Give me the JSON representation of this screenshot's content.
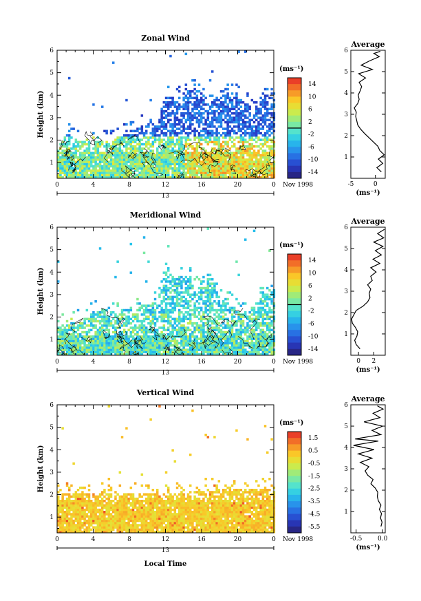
{
  "figure": {
    "month_label": "Nov 1998",
    "day_label": "13",
    "xlabel_bottom": "Local Time"
  },
  "chart_data": [
    {
      "type": "heatmap",
      "title": "Zonal Wind",
      "ylabel": "Height (km)",
      "xlabel": "",
      "x_ticks": [
        "0",
        "4",
        "8",
        "12",
        "16",
        "20",
        "0"
      ],
      "xlim": [
        0,
        24
      ],
      "ylim": [
        0.3,
        6
      ],
      "y_ticks": [
        1,
        2,
        3,
        4,
        5,
        6
      ],
      "colorbar": {
        "unit": "(ms⁻¹)",
        "ticks": [
          "14",
          "10",
          "6",
          "2",
          "-2",
          "-6",
          "-10",
          "-14"
        ],
        "range": [
          -15,
          15
        ],
        "mark": 0
      },
      "profile": {
        "title": "Average",
        "xlabel": "(ms⁻¹)",
        "x_ticks": [
          "-5",
          "0"
        ],
        "xlim": [
          -5,
          2
        ],
        "ylim": [
          0,
          6
        ],
        "points": [
          [
            1.2,
            0.3
          ],
          [
            0.3,
            0.5
          ],
          [
            1.5,
            0.7
          ],
          [
            0.6,
            0.9
          ],
          [
            1.8,
            1.1
          ],
          [
            0.9,
            1.3
          ],
          [
            0.5,
            1.5
          ],
          [
            -0.4,
            1.7
          ],
          [
            -1.3,
            1.9
          ],
          [
            -2.2,
            2.1
          ],
          [
            -3.0,
            2.3
          ],
          [
            -3.6,
            2.5
          ],
          [
            -3.8,
            2.7
          ],
          [
            -4.0,
            2.9
          ],
          [
            -3.9,
            3.1
          ],
          [
            -4.3,
            3.3
          ],
          [
            -3.6,
            3.5
          ],
          [
            -3.3,
            3.7
          ],
          [
            -3.5,
            3.9
          ],
          [
            -3.1,
            4.1
          ],
          [
            -2.8,
            4.3
          ],
          [
            -3.3,
            4.5
          ],
          [
            -2.0,
            4.7
          ],
          [
            -3.4,
            4.9
          ],
          [
            -0.6,
            5.1
          ],
          [
            -2.9,
            5.3
          ],
          [
            -1.2,
            5.5
          ],
          [
            0.8,
            5.7
          ],
          [
            -0.3,
            5.85
          ],
          [
            1.0,
            5.95
          ]
        ]
      },
      "seed": 7,
      "field_min": -12,
      "field_max": 14,
      "base_top": 1.5,
      "tops": [
        [
          0,
          1.7
        ],
        [
          1,
          2.3
        ],
        [
          2,
          2.0
        ],
        [
          3,
          1.9
        ],
        [
          4,
          1.9
        ],
        [
          5,
          2.0
        ],
        [
          6,
          2.0
        ],
        [
          7,
          2.2
        ],
        [
          8,
          2.3
        ],
        [
          9,
          2.6
        ],
        [
          10,
          2.4
        ],
        [
          11,
          2.7
        ],
        [
          12,
          4.0
        ],
        [
          13,
          3.8
        ],
        [
          14,
          4.0
        ],
        [
          15,
          4.3
        ],
        [
          16,
          4.1
        ],
        [
          17,
          3.7
        ],
        [
          18,
          4.0
        ],
        [
          19,
          4.2
        ],
        [
          20,
          3.9
        ],
        [
          21,
          3.6
        ],
        [
          22,
          3.4
        ],
        [
          23,
          4.1
        ],
        [
          24,
          3.8
        ]
      ]
    },
    {
      "type": "heatmap",
      "title": "Meridional Wind",
      "ylabel": "Height (km)",
      "xlabel": "",
      "x_ticks": [
        "0",
        "4",
        "8",
        "12",
        "16",
        "20",
        "0"
      ],
      "xlim": [
        0,
        24
      ],
      "ylim": [
        0.3,
        6
      ],
      "y_ticks": [
        1,
        2,
        3,
        4,
        5,
        6
      ],
      "colorbar": {
        "unit": "(ms⁻¹)",
        "ticks": [
          "14",
          "10",
          "6",
          "2",
          "-2",
          "-6",
          "-10",
          "-14"
        ],
        "range": [
          -15,
          15
        ],
        "mark": 0
      },
      "profile": {
        "title": "Average",
        "xlabel": "(ms⁻¹)",
        "x_ticks": [
          "0",
          "2"
        ],
        "xlim": [
          -1,
          3.5
        ],
        "ylim": [
          0,
          6
        ],
        "points": [
          [
            0.2,
            0.3
          ],
          [
            -0.3,
            0.5
          ],
          [
            -0.5,
            0.7
          ],
          [
            -0.2,
            0.9
          ],
          [
            -0.1,
            1.1
          ],
          [
            -0.4,
            1.3
          ],
          [
            -0.8,
            1.5
          ],
          [
            -0.9,
            1.7
          ],
          [
            -0.6,
            1.9
          ],
          [
            -0.3,
            2.1
          ],
          [
            0.6,
            2.3
          ],
          [
            1.2,
            2.5
          ],
          [
            1.5,
            2.7
          ],
          [
            1.4,
            2.9
          ],
          [
            1.6,
            3.1
          ],
          [
            1.2,
            3.3
          ],
          [
            1.8,
            3.5
          ],
          [
            1.6,
            3.7
          ],
          [
            2.3,
            3.9
          ],
          [
            1.6,
            4.1
          ],
          [
            2.8,
            4.3
          ],
          [
            1.9,
            4.5
          ],
          [
            3.0,
            4.7
          ],
          [
            2.2,
            4.9
          ],
          [
            3.2,
            5.1
          ],
          [
            2.0,
            5.3
          ],
          [
            3.3,
            5.5
          ],
          [
            2.5,
            5.7
          ],
          [
            3.4,
            5.9
          ]
        ]
      },
      "seed": 23,
      "field_min": -12,
      "field_max": 6,
      "base_top": 1.2,
      "tops": [
        [
          0,
          1.6
        ],
        [
          1,
          1.7
        ],
        [
          2,
          1.8
        ],
        [
          3,
          1.9
        ],
        [
          4,
          2.3
        ],
        [
          5,
          2.4
        ],
        [
          6,
          2.2
        ],
        [
          7,
          2.3
        ],
        [
          8,
          2.0
        ],
        [
          9,
          2.5
        ],
        [
          10,
          2.6
        ],
        [
          11,
          2.7
        ],
        [
          12,
          4.1
        ],
        [
          13,
          3.7
        ],
        [
          14,
          3.9
        ],
        [
          15,
          3.4
        ],
        [
          16,
          3.3
        ],
        [
          17,
          3.8
        ],
        [
          18,
          2.8
        ],
        [
          19,
          2.6
        ],
        [
          20,
          2.3
        ],
        [
          21,
          2.2
        ],
        [
          22,
          2.7
        ],
        [
          23,
          3.0
        ],
        [
          24,
          3.2
        ]
      ]
    },
    {
      "type": "heatmap",
      "title": "Vertical Wind",
      "ylabel": "Height (km)",
      "xlabel": "Local Time",
      "x_ticks": [
        "0",
        "4",
        "8",
        "12",
        "16",
        "20",
        "0"
      ],
      "xlim": [
        0,
        24
      ],
      "ylim": [
        0.3,
        6
      ],
      "y_ticks": [
        1,
        2,
        3,
        4,
        5,
        6
      ],
      "colorbar": {
        "unit": "(ms⁻¹)",
        "ticks": [
          "1.5",
          "0.5",
          "-0.5",
          "-1.5",
          "-2.5",
          "-3.5",
          "-4.5",
          "-5.5"
        ],
        "range": [
          -6,
          2
        ],
        "mark": null
      },
      "profile": {
        "title": "Average",
        "xlabel": "(ms⁻¹)",
        "x_ticks": [
          "-0.5",
          "0.0"
        ],
        "xlim": [
          -0.6,
          0.05
        ],
        "ylim": [
          0,
          6
        ],
        "points": [
          [
            -0.03,
            0.3
          ],
          [
            -0.01,
            0.5
          ],
          [
            -0.04,
            0.7
          ],
          [
            -0.02,
            0.9
          ],
          [
            -0.06,
            1.1
          ],
          [
            -0.03,
            1.3
          ],
          [
            -0.08,
            1.5
          ],
          [
            -0.1,
            1.7
          ],
          [
            -0.09,
            1.9
          ],
          [
            -0.14,
            2.1
          ],
          [
            -0.22,
            2.3
          ],
          [
            -0.18,
            2.5
          ],
          [
            -0.28,
            2.7
          ],
          [
            -0.33,
            2.9
          ],
          [
            -0.26,
            3.1
          ],
          [
            -0.42,
            3.3
          ],
          [
            -0.2,
            3.5
          ],
          [
            -0.46,
            3.7
          ],
          [
            -0.16,
            3.9
          ],
          [
            -0.55,
            4.1
          ],
          [
            -0.08,
            4.3
          ],
          [
            -0.52,
            4.4
          ],
          [
            -0.03,
            4.6
          ],
          [
            -0.2,
            4.8
          ],
          [
            0.0,
            5.0
          ],
          [
            -0.35,
            5.2
          ],
          [
            -0.05,
            5.4
          ],
          [
            -0.18,
            5.6
          ],
          [
            0.01,
            5.8
          ],
          [
            -0.1,
            5.95
          ]
        ]
      },
      "seed": 41,
      "field_min": -1.2,
      "field_max": 1.2,
      "base_top": 1.8,
      "tops": [
        [
          0,
          2.1
        ],
        [
          4,
          2.1
        ],
        [
          8,
          2.1
        ],
        [
          12,
          2.0
        ],
        [
          16,
          2.2
        ],
        [
          20,
          2.3
        ],
        [
          24,
          2.2
        ]
      ]
    }
  ]
}
